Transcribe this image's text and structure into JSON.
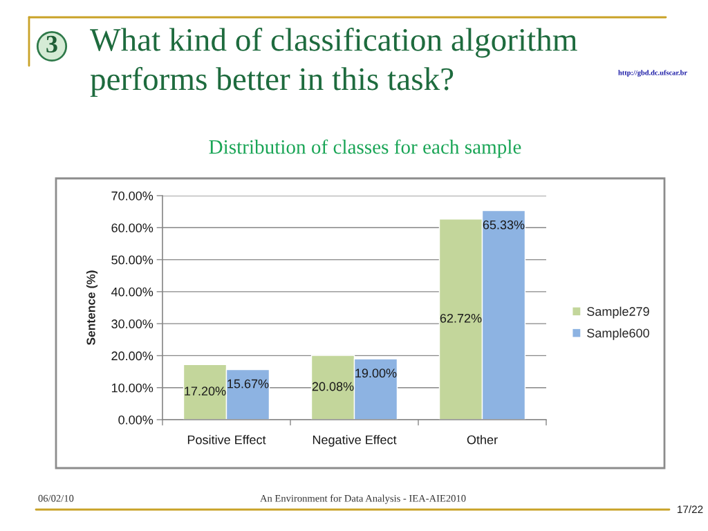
{
  "chart_data": {
    "type": "bar",
    "title": "What kind of classification algorithm\nperforms better in this task?",
    "subtitle": "Distribution of classes for each sample",
    "ylabel": "Sentence (%)",
    "categories": [
      "Positive Effect",
      "Negative Effect",
      "Other"
    ],
    "series": [
      {
        "name": "Sample279",
        "color": "#c3d69b",
        "values": [
          17.2,
          20.08,
          62.72
        ],
        "value_labels": [
          "17.20%",
          "20.08%",
          "62.72%"
        ]
      },
      {
        "name": "Sample600",
        "color": "#8db3e2",
        "values": [
          15.67,
          19.0,
          65.33
        ],
        "value_labels": [
          "15.67%",
          "19.00%",
          "65.33%"
        ]
      }
    ],
    "ylim": [
      0,
      70
    ],
    "yticks": [
      {
        "value": 0,
        "label": "0.00%"
      },
      {
        "value": 10,
        "label": "10.00%"
      },
      {
        "value": 20,
        "label": "20.00%"
      },
      {
        "value": 30,
        "label": "30.00%"
      },
      {
        "value": 40,
        "label": "40.00%"
      },
      {
        "value": 50,
        "label": "50.00%"
      },
      {
        "value": 60,
        "label": "60.00%"
      },
      {
        "value": 70,
        "label": "70.00%"
      }
    ],
    "grid": "y",
    "legend": "right",
    "annotations": [
      "3",
      "http://gbd.dc.ufscar.br",
      "06/02/10",
      "An Environment for Data Analysis - IEA-AIE2010",
      "17/22"
    ]
  }
}
